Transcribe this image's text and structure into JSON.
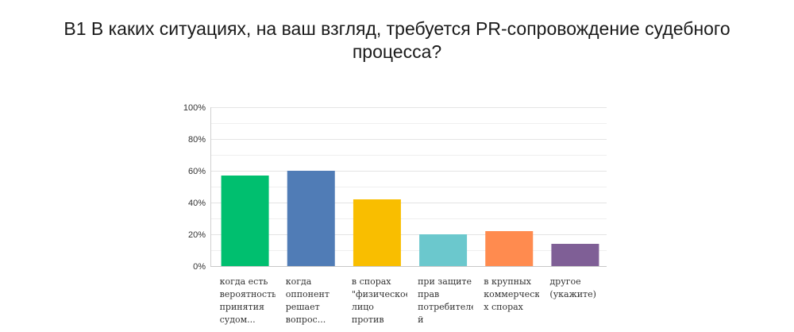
{
  "chart_data": {
    "type": "bar",
    "title": "B1 В каких ситуациях, на ваш взгляд, требуется PR-сопровождение судебного процесса?",
    "xlabel": "",
    "ylabel": "",
    "ylim": [
      0,
      100
    ],
    "yticks": [
      "0%",
      "20%",
      "40%",
      "60%",
      "80%",
      "100%"
    ],
    "grid": true,
    "categories": [
      "когда есть вероятность принятия судом...",
      "когда оппонент решает вопрос...",
      "в спорах \"физическое лицо против...",
      "при защите прав потребителей",
      "в крупных коммерческих спорах",
      "другое (укажите)"
    ],
    "category_label_lines": [
      [
        "когда есть",
        "вероятность",
        "принятия",
        "судом..."
      ],
      [
        "когда",
        "оппонент",
        "решает",
        "вопрос..."
      ],
      [
        "в спорах",
        "\"физическое",
        "лицо",
        "против"
      ],
      [
        "при защите",
        "прав",
        "потребителе",
        "й"
      ],
      [
        "в крупных",
        "коммерчески",
        "х спорах"
      ],
      [
        "другое",
        "(укажите)"
      ]
    ],
    "values": [
      57,
      60,
      42,
      20,
      22,
      14
    ],
    "colors": [
      "#00bf6f",
      "#507cb6",
      "#f9be00",
      "#6bc8cd",
      "#ff8b4f",
      "#7f5f96"
    ]
  }
}
